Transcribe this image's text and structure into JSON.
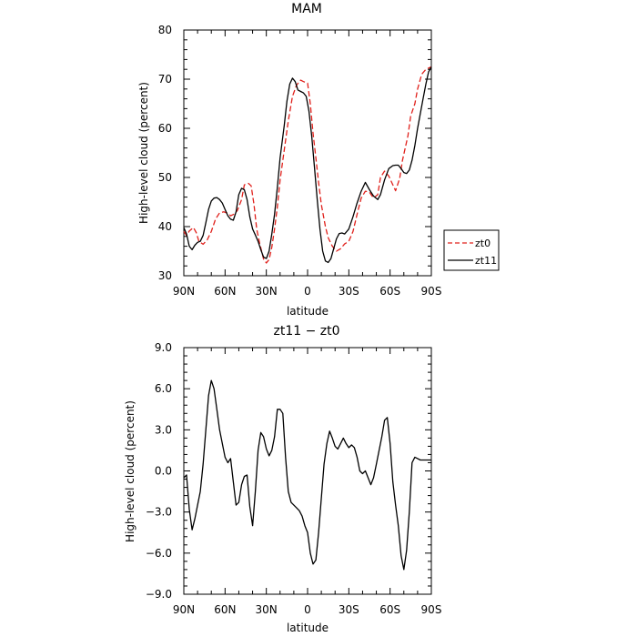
{
  "chart_data": [
    {
      "type": "line",
      "title": "MAM",
      "xlabel": "latitude",
      "ylabel": "High-level cloud (percent)",
      "xlim": [
        -90,
        90
      ],
      "ylim": [
        30,
        80
      ],
      "xticks": [
        -90,
        -60,
        -30,
        0,
        30,
        60,
        90
      ],
      "xtick_labels": [
        "90N",
        "60N",
        "30N",
        "0",
        "30S",
        "60S",
        "90S"
      ],
      "yticks": [
        30,
        40,
        50,
        60,
        70,
        80
      ],
      "ytick_labels": [
        "30",
        "40",
        "50",
        "60",
        "70",
        "80"
      ],
      "legend": {
        "placement": "outside-right"
      },
      "series": [
        {
          "name": "zt0",
          "color": "#e0201b",
          "dash": "dashed",
          "x": [
            -90,
            -88,
            -86,
            -83,
            -81,
            -79,
            -76,
            -73,
            -70,
            -67,
            -64,
            -61,
            -58,
            -56,
            -53,
            -51,
            -48,
            -46,
            -43,
            -41,
            -39,
            -37,
            -35,
            -32,
            -30,
            -28,
            -26,
            -24,
            -22,
            -20,
            -17,
            -14,
            -11,
            -8,
            -5,
            -3,
            0,
            2,
            4,
            6,
            8,
            10,
            13,
            15,
            18,
            21,
            24,
            27,
            30,
            33,
            36,
            39,
            42,
            45,
            48,
            51,
            53,
            56,
            59,
            62,
            64,
            67,
            69,
            71,
            73,
            75,
            78,
            80,
            83,
            86,
            90
          ],
          "values": [
            39.0,
            38.2,
            39.1,
            39.8,
            38.8,
            37.0,
            36.4,
            37.3,
            39.0,
            41.5,
            42.8,
            43.0,
            42.7,
            42.2,
            42.6,
            43.3,
            45.5,
            48.5,
            48.8,
            48.3,
            44.5,
            39.5,
            36.8,
            33.4,
            32.6,
            33.3,
            35.8,
            39.5,
            44.0,
            49.5,
            55.5,
            61.5,
            66.5,
            68.8,
            69.8,
            69.5,
            69.2,
            65.0,
            59.0,
            54.0,
            49.0,
            44.5,
            40.0,
            37.7,
            36.0,
            35.0,
            35.5,
            36.5,
            37.0,
            39.0,
            42.5,
            45.8,
            47.2,
            47.0,
            45.8,
            46.5,
            50.0,
            51.3,
            50.3,
            48.5,
            47.3,
            49.8,
            53.5,
            56.0,
            58.5,
            62.5,
            65.0,
            68.0,
            71.0,
            72.0,
            72.5
          ]
        },
        {
          "name": "zt11",
          "color": "#000000",
          "dash": "solid",
          "x": [
            -90,
            -88,
            -86,
            -84,
            -82,
            -80,
            -78,
            -76,
            -74,
            -72,
            -70,
            -68,
            -66,
            -64,
            -62,
            -60,
            -58,
            -56,
            -54,
            -52,
            -50,
            -48,
            -46,
            -44,
            -42,
            -40,
            -38,
            -36,
            -34,
            -32,
            -30,
            -28,
            -26,
            -24,
            -22,
            -20,
            -17,
            -15,
            -13,
            -11,
            -9,
            -7,
            -5,
            -3,
            -1,
            1,
            3,
            5,
            7,
            9,
            11,
            13,
            15,
            17,
            19,
            21,
            23,
            25,
            27,
            30,
            33,
            36,
            39,
            42,
            45,
            48,
            51,
            53,
            56,
            59,
            62,
            64,
            66,
            68,
            70,
            72,
            74,
            76,
            78,
            80,
            82,
            84,
            86,
            88,
            90
          ],
          "values": [
            39.8,
            38.5,
            36.0,
            35.3,
            36.2,
            36.8,
            37.0,
            38.2,
            40.8,
            43.5,
            45.2,
            45.8,
            45.9,
            45.5,
            44.8,
            43.5,
            42.2,
            41.5,
            41.3,
            43.0,
            46.5,
            47.8,
            47.5,
            45.5,
            42.0,
            39.5,
            38.3,
            37.0,
            35.3,
            33.8,
            33.5,
            35.0,
            38.5,
            42.5,
            48.0,
            54.0,
            60.5,
            65.5,
            69.0,
            70.2,
            69.5,
            67.8,
            67.5,
            67.2,
            66.5,
            63.5,
            58.5,
            52.0,
            45.5,
            39.5,
            35.0,
            33.0,
            32.7,
            33.5,
            35.5,
            37.5,
            38.6,
            38.7,
            38.5,
            39.5,
            42.0,
            44.8,
            47.2,
            49.0,
            47.5,
            46.2,
            45.5,
            46.5,
            49.5,
            51.8,
            52.4,
            52.5,
            52.5,
            51.8,
            51.0,
            50.8,
            51.5,
            53.5,
            56.5,
            60.0,
            63.0,
            66.0,
            69.0,
            71.5,
            72.5
          ]
        }
      ]
    },
    {
      "type": "line",
      "title": "zt11 − zt0",
      "xlabel": "latitude",
      "ylabel": "High-level cloud (percent)",
      "xlim": [
        -90,
        90
      ],
      "ylim": [
        -9,
        9
      ],
      "xticks": [
        -90,
        -60,
        -30,
        0,
        30,
        60,
        90
      ],
      "xtick_labels": [
        "90N",
        "60N",
        "30N",
        "0",
        "30S",
        "60S",
        "90S"
      ],
      "yticks": [
        -9,
        -6,
        -3,
        0,
        3,
        6,
        9
      ],
      "ytick_labels": [
        "−9.0",
        "−6.0",
        "−3.0",
        "0.0",
        "3.0",
        "6.0",
        "9.0"
      ],
      "grid": false,
      "series": [
        {
          "color": "#000000",
          "dash": "solid",
          "x": [
            -90,
            -88,
            -86,
            -84,
            -82,
            -80,
            -78,
            -76,
            -74,
            -72,
            -70,
            -68,
            -66,
            -64,
            -62,
            -60,
            -58,
            -56,
            -54,
            -52,
            -50,
            -48,
            -46,
            -44,
            -42,
            -40,
            -38,
            -36,
            -34,
            -32,
            -30,
            -28,
            -26,
            -24,
            -22,
            -20,
            -18,
            -16,
            -14,
            -12,
            -10,
            -8,
            -6,
            -4,
            -2,
            0,
            2,
            4,
            6,
            8,
            10,
            12,
            14,
            16,
            18,
            20,
            22,
            24,
            26,
            28,
            30,
            32,
            34,
            36,
            38,
            40,
            42,
            44,
            46,
            48,
            50,
            52,
            54,
            56,
            58,
            60,
            62,
            64,
            66,
            68,
            70,
            72,
            74,
            76,
            78,
            80,
            82,
            84,
            86,
            88,
            90
          ],
          "values": [
            -0.5,
            -0.3,
            -2.8,
            -4.3,
            -3.5,
            -2.5,
            -1.5,
            0.5,
            3.0,
            5.5,
            6.6,
            6.0,
            4.5,
            3.0,
            2.0,
            1.0,
            0.6,
            0.9,
            -0.8,
            -2.5,
            -2.3,
            -1.0,
            -0.4,
            -0.3,
            -2.6,
            -4.0,
            -1.5,
            1.5,
            2.8,
            2.5,
            1.6,
            1.1,
            1.5,
            2.5,
            4.5,
            4.5,
            4.2,
            1.0,
            -1.5,
            -2.3,
            -2.5,
            -2.7,
            -2.9,
            -3.3,
            -4.0,
            -4.5,
            -6.0,
            -6.8,
            -6.5,
            -4.5,
            -2.0,
            0.5,
            2.0,
            2.9,
            2.4,
            1.8,
            1.6,
            2.0,
            2.4,
            2.0,
            1.7,
            1.9,
            1.7,
            1.0,
            0.0,
            -0.2,
            0.0,
            -0.5,
            -1.0,
            -0.5,
            0.5,
            1.5,
            2.5,
            3.7,
            3.9,
            2.0,
            -0.8,
            -2.5,
            -4.0,
            -6.2,
            -7.2,
            -5.8,
            -3.0,
            0.6,
            1.0,
            0.9,
            0.8,
            0.8,
            0.8,
            0.8,
            0.8
          ]
        }
      ]
    }
  ],
  "legend_labels": [
    "zt0",
    "zt11"
  ]
}
